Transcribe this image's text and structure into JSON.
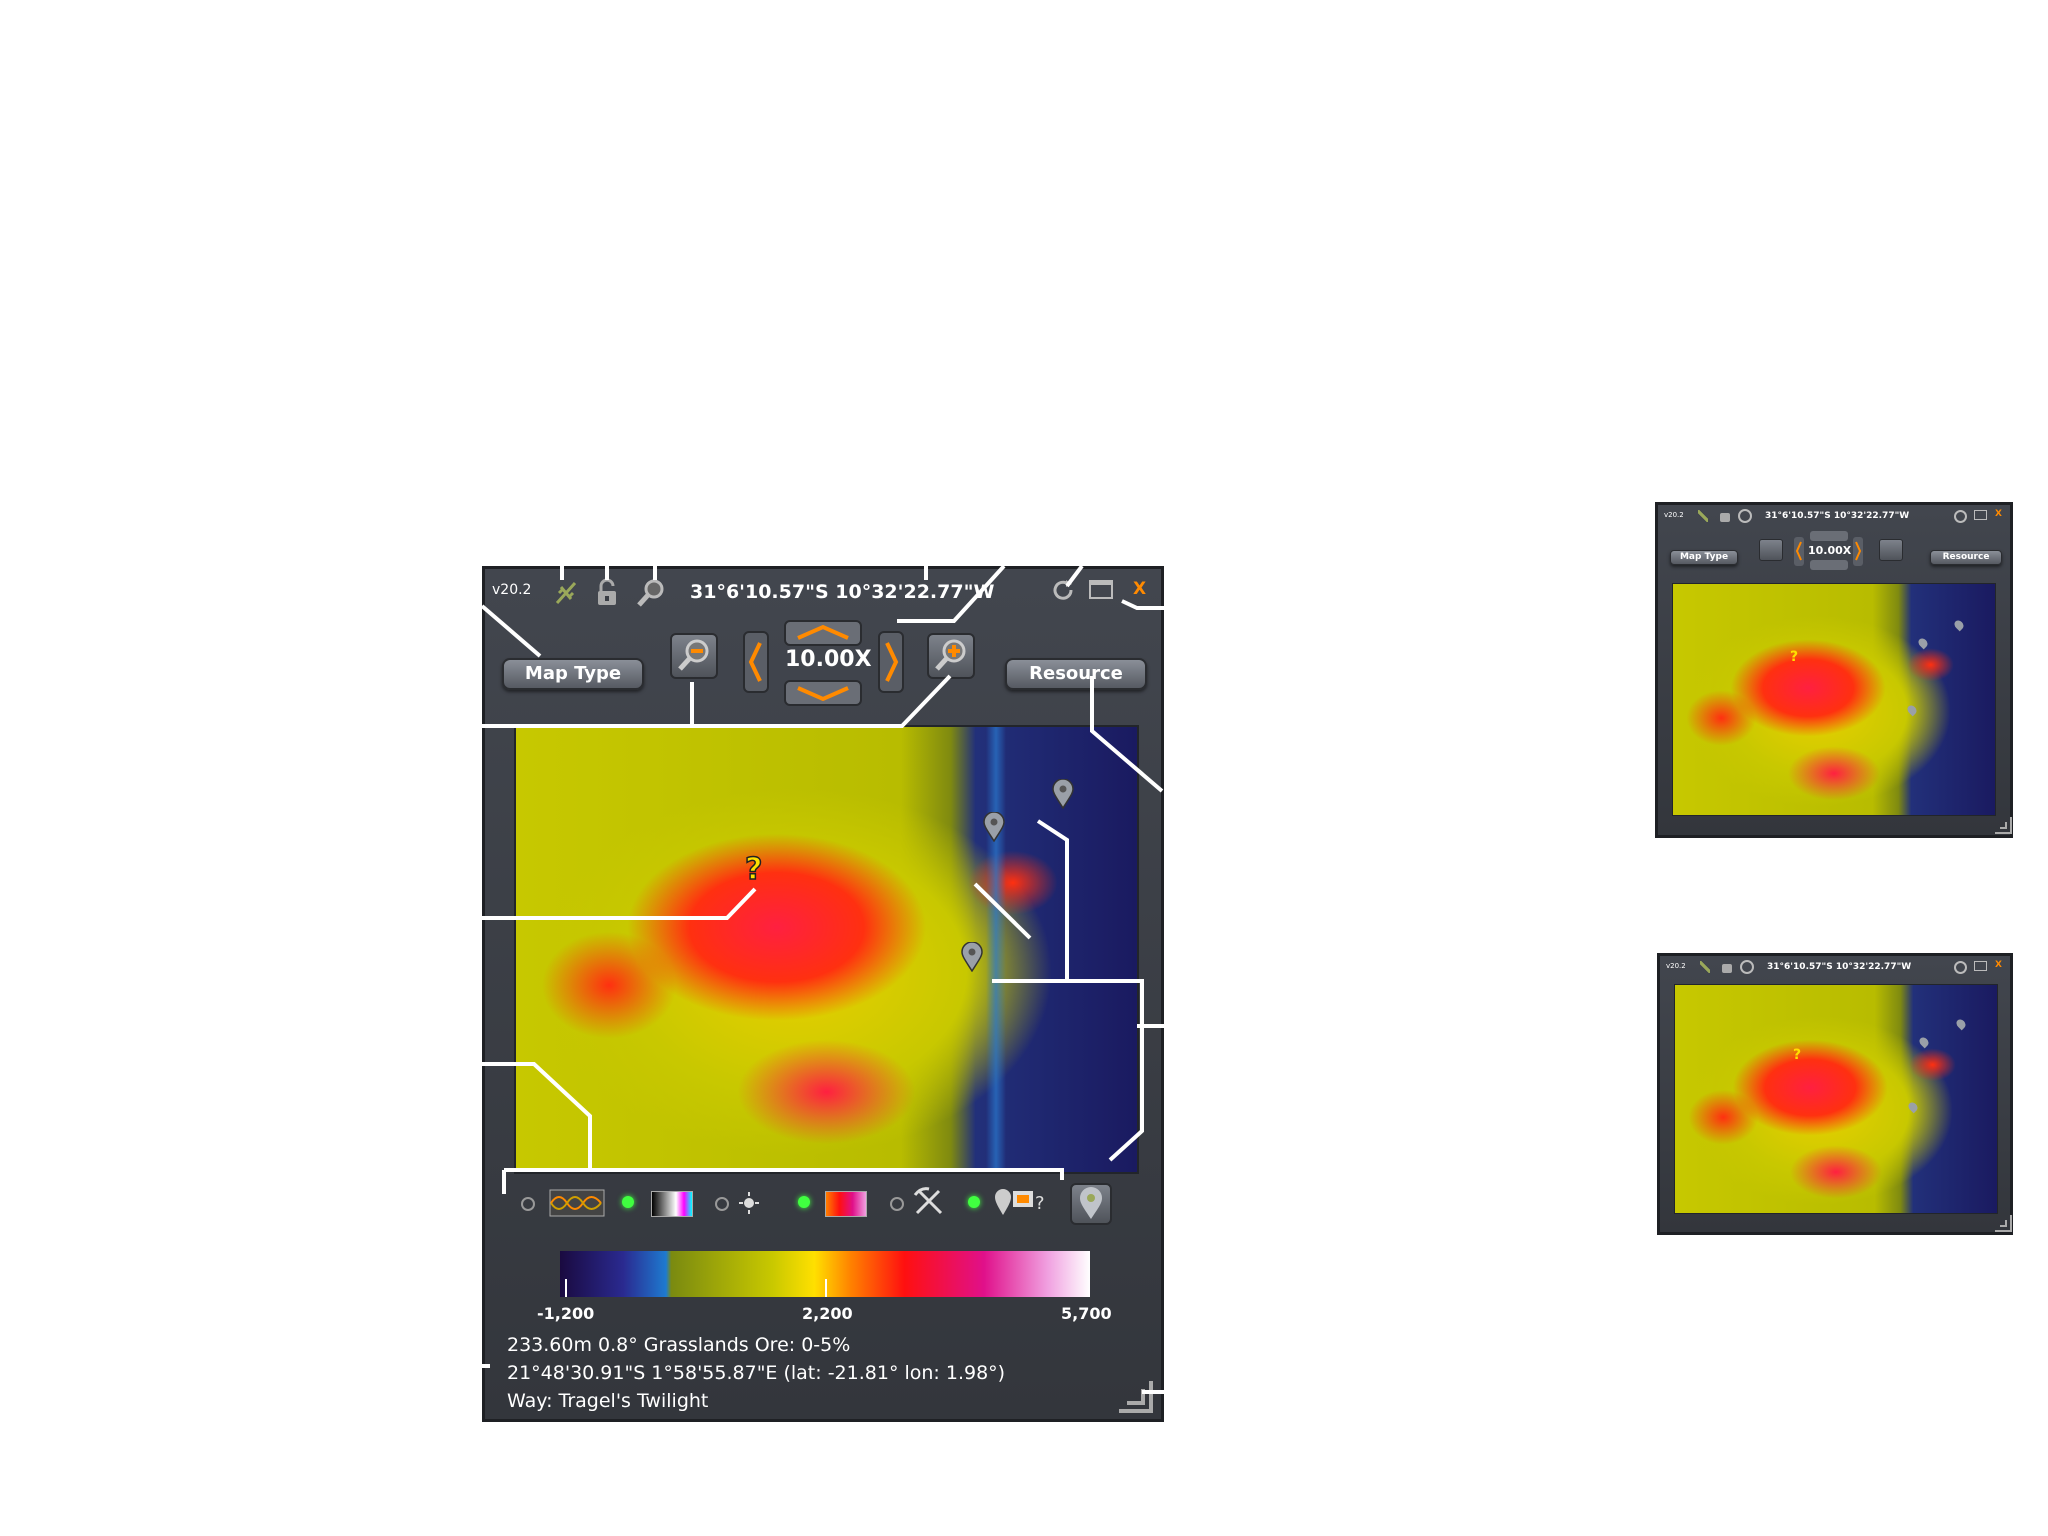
{
  "main_panel": {
    "version": "v20.2",
    "coords": "31°6'10.57\"S 10°32'22.77\"W",
    "close_label": "X",
    "map_type_label": "Map Type",
    "resource_label": "Resource",
    "zoom_value": "10.00X",
    "legend": {
      "min": "-1,200",
      "mid": "2,200",
      "max": "5,700"
    },
    "info": {
      "line1": "233.60m 0.8° Grasslands Ore: 0-5%",
      "line2": "21°48'30.91\"S 1°58'55.87\"E (lat: -21.81° lon: 1.98°)",
      "line3": "Way: Tragel's Twilight"
    }
  },
  "mini_panel_1": {
    "version": "v20.2",
    "coords": "31°6'10.57\"S 10°32'22.77\"W",
    "close_label": "X",
    "map_type_label": "Map Type",
    "resource_label": "Resource",
    "zoom_value": "10.00X"
  },
  "mini_panel_2": {
    "version": "v20.2",
    "coords": "31°6'10.57\"S 10°32'22.77\"W",
    "close_label": "X"
  },
  "colors": {
    "accent": "#ff8a00",
    "panel": "#3a3d44",
    "green_light": "#40ff40"
  }
}
